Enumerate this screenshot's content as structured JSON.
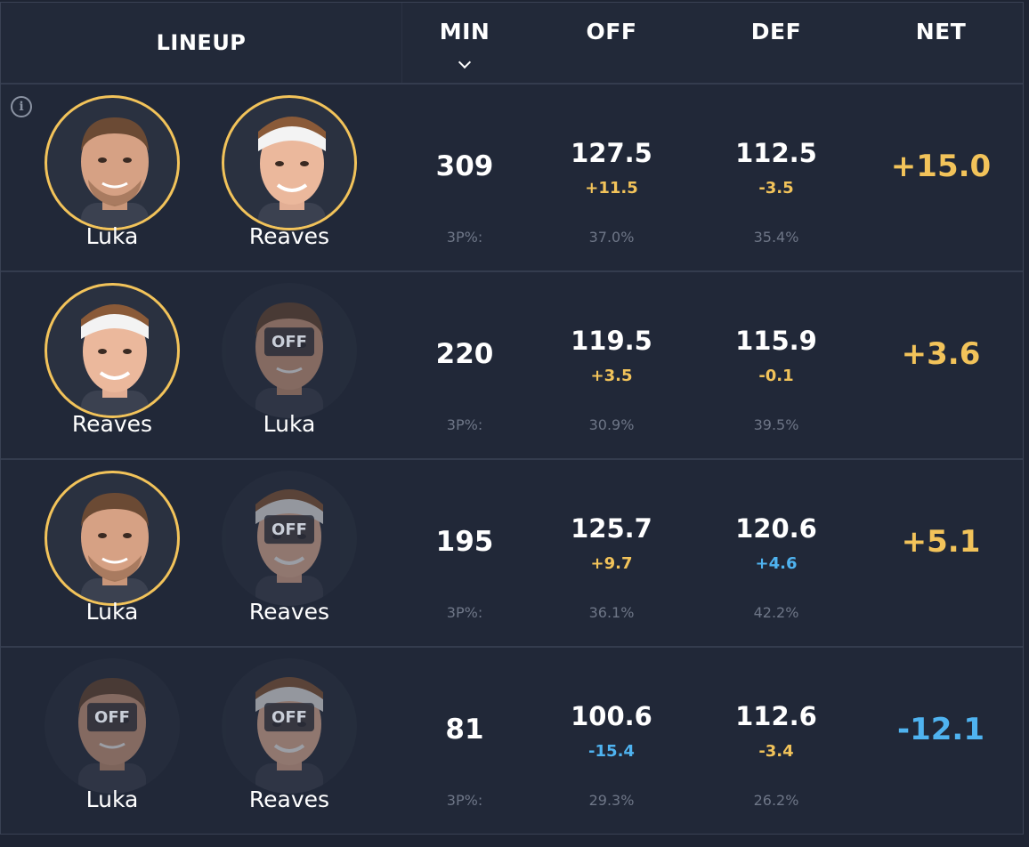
{
  "header": {
    "lineup": "LINEUP",
    "min": "MIN",
    "off": "OFF",
    "def": "DEF",
    "net": "NET"
  },
  "info_icon_glyph": "i",
  "off_badge_text": "OFF",
  "colors": {
    "accent_gold": "#f2c35a",
    "accent_blue": "#4fb3f0",
    "background": "#212838"
  },
  "rows": [
    {
      "players": [
        {
          "name": "Luka",
          "status": "on"
        },
        {
          "name": "Reaves",
          "status": "on"
        }
      ],
      "min": "309",
      "off": "127.5",
      "off_delta": "+11.5",
      "off_3p": "37.0%",
      "def": "112.5",
      "def_delta": "-3.5",
      "def_3p": "35.4%",
      "three_label": "3P%:",
      "net": "+15.0"
    },
    {
      "players": [
        {
          "name": "Reaves",
          "status": "on"
        },
        {
          "name": "Luka",
          "status": "off"
        }
      ],
      "min": "220",
      "off": "119.5",
      "off_delta": "+3.5",
      "off_3p": "30.9%",
      "def": "115.9",
      "def_delta": "-0.1",
      "def_3p": "39.5%",
      "three_label": "3P%:",
      "net": "+3.6"
    },
    {
      "players": [
        {
          "name": "Luka",
          "status": "on"
        },
        {
          "name": "Reaves",
          "status": "off"
        }
      ],
      "min": "195",
      "off": "125.7",
      "off_delta": "+9.7",
      "off_3p": "36.1%",
      "def": "120.6",
      "def_delta": "+4.6",
      "def_3p": "42.2%",
      "three_label": "3P%:",
      "net": "+5.1"
    },
    {
      "players": [
        {
          "name": "Luka",
          "status": "off"
        },
        {
          "name": "Reaves",
          "status": "off"
        }
      ],
      "min": "81",
      "off": "100.6",
      "off_delta": "-15.4",
      "off_3p": "29.3%",
      "def": "112.6",
      "def_delta": "-3.4",
      "def_3p": "26.2%",
      "three_label": "3P%:",
      "net": "-12.1"
    }
  ]
}
